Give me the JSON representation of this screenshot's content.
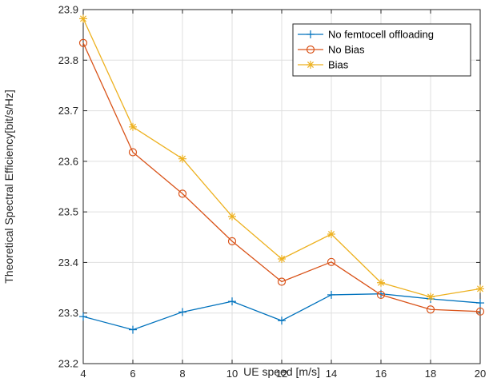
{
  "chart_data": {
    "type": "line",
    "xlabel": "UE speed [m/s]",
    "ylabel": "Theoretical Spectral Efficiency[bit/s/Hz]",
    "x": [
      4,
      6,
      8,
      10,
      12,
      14,
      16,
      18,
      20
    ],
    "xlim": [
      4,
      20
    ],
    "ylim": [
      23.2,
      23.9
    ],
    "xticks": [
      "4",
      "6",
      "8",
      "10",
      "12",
      "14",
      "16",
      "18",
      "20"
    ],
    "yticks": [
      "23.2",
      "23.3",
      "23.4",
      "23.5",
      "23.6",
      "23.7",
      "23.8",
      "23.9"
    ],
    "grid": true,
    "legend_position": "top-right",
    "series": [
      {
        "name": "No femtocell offloading",
        "color": "#0072BD",
        "marker": "plus",
        "values": [
          23.293,
          23.267,
          23.302,
          23.323,
          23.285,
          23.336,
          23.338,
          23.328,
          23.32
        ]
      },
      {
        "name": "No Bias",
        "color": "#D95319",
        "marker": "circle",
        "values": [
          23.834,
          23.618,
          23.536,
          23.442,
          23.362,
          23.401,
          23.336,
          23.307,
          23.303
        ]
      },
      {
        "name": "Bias",
        "color": "#EDB120",
        "marker": "asterisk",
        "values": [
          23.882,
          23.668,
          23.605,
          23.491,
          23.407,
          23.456,
          23.36,
          23.332,
          23.348
        ]
      }
    ]
  }
}
